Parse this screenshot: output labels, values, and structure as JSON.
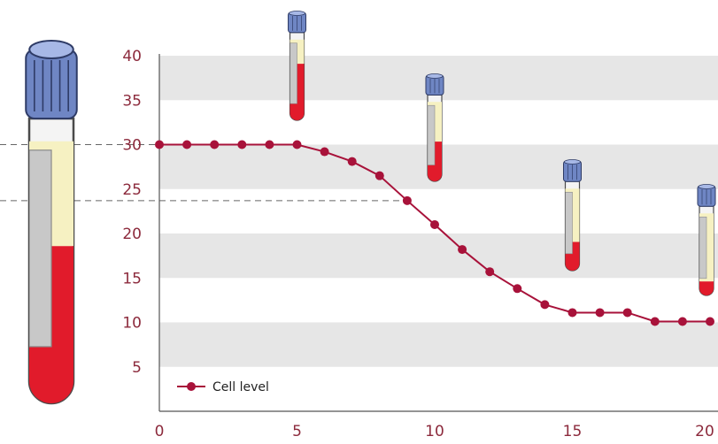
{
  "colors": {
    "accent": "#a8123a",
    "band": "#e6e6e6",
    "axis": "#555555",
    "blood": "#e11b2b",
    "plasma": "#f6f1c2",
    "cap": "#6f86c4",
    "label": "#8c2a3c"
  },
  "chart_data": {
    "type": "line",
    "title": "",
    "xlabel": "",
    "ylabel": "",
    "xlim": [
      0,
      20
    ],
    "ylim": [
      0,
      40
    ],
    "x_ticks": [
      0,
      5,
      10,
      15,
      20
    ],
    "y_ticks": [
      5,
      10,
      15,
      20,
      25,
      30,
      35,
      40
    ],
    "grid": "alternating horizontal bands",
    "legend_position": "bottom-left",
    "series": [
      {
        "name": "Cell level",
        "x": [
          0,
          1,
          2,
          3,
          4,
          5,
          6,
          7,
          8,
          9,
          10,
          11,
          12,
          13,
          14,
          15,
          16,
          17,
          18,
          19,
          20
        ],
        "y": [
          30,
          30,
          30,
          30,
          30,
          30,
          29.2,
          28.1,
          26.5,
          23.7,
          21,
          18.2,
          15.7,
          13.8,
          12,
          11.1,
          11.1,
          11.1,
          10.1,
          10.1,
          10.1
        ]
      }
    ],
    "reference_lines": [
      30,
      23.7
    ],
    "tube_fill_levels": [
      {
        "x": 5,
        "blood_fraction": 0.7,
        "plasma_fraction": 0.3
      },
      {
        "x": 10,
        "blood_fraction": 0.5,
        "plasma_fraction": 0.5
      },
      {
        "x": 15,
        "blood_fraction": 0.35,
        "plasma_fraction": 0.65
      },
      {
        "x": 20,
        "blood_fraction": 0.17,
        "plasma_fraction": 0.83
      }
    ],
    "big_tube": {
      "blood_fraction": 0.6
    }
  }
}
